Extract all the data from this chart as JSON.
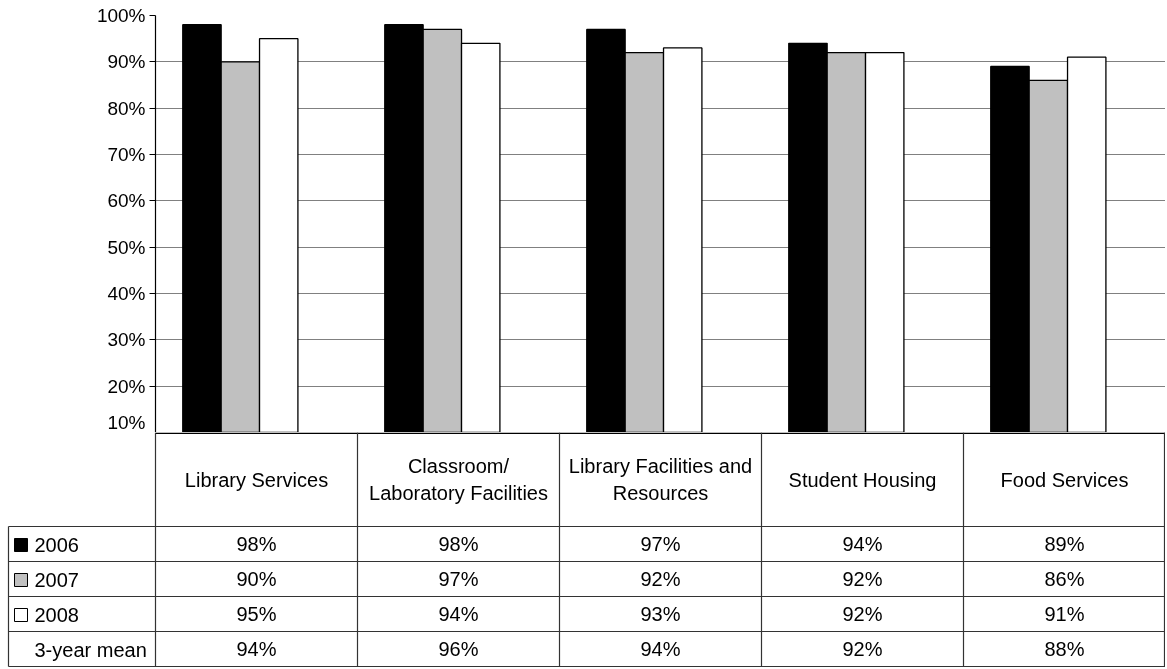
{
  "chart_data": {
    "type": "bar",
    "categories": [
      "Library Services",
      "Classroom/ Laboratory Facilities",
      "Library Facilities and Resources",
      "Student Housing",
      "Food Services"
    ],
    "series": [
      {
        "name": "2006",
        "color": "#000000",
        "values": [
          98,
          98,
          97,
          94,
          89
        ],
        "value_labels": [
          "98%",
          "98%",
          "97%",
          "94%",
          "89%"
        ]
      },
      {
        "name": "2007",
        "color": "#c0c0c0",
        "values": [
          90,
          97,
          92,
          92,
          86
        ],
        "value_labels": [
          "90%",
          "97%",
          "92%",
          "92%",
          "86%"
        ]
      },
      {
        "name": "2008",
        "color": "#ffffff",
        "values": [
          95,
          94,
          93,
          92,
          91
        ],
        "value_labels": [
          "95%",
          "94%",
          "93%",
          "92%",
          "91%"
        ]
      }
    ],
    "annotations": [
      "3-year mean",
      "94%",
      "96%",
      "94%",
      "92%",
      "88%"
    ],
    "ylim": [
      10,
      100
    ],
    "yticks": [
      {
        "value": 10,
        "label": "10%"
      },
      {
        "value": 20,
        "label": "20%"
      },
      {
        "value": 30,
        "label": "30%"
      },
      {
        "value": 40,
        "label": "40%"
      },
      {
        "value": 50,
        "label": "50%"
      },
      {
        "value": 60,
        "label": "60%"
      },
      {
        "value": 70,
        "label": "70%"
      },
      {
        "value": 80,
        "label": "80%"
      },
      {
        "value": 90,
        "label": "90%"
      },
      {
        "value": 100,
        "label": "100%"
      }
    ],
    "grid": "y",
    "legend": "bottom left"
  }
}
